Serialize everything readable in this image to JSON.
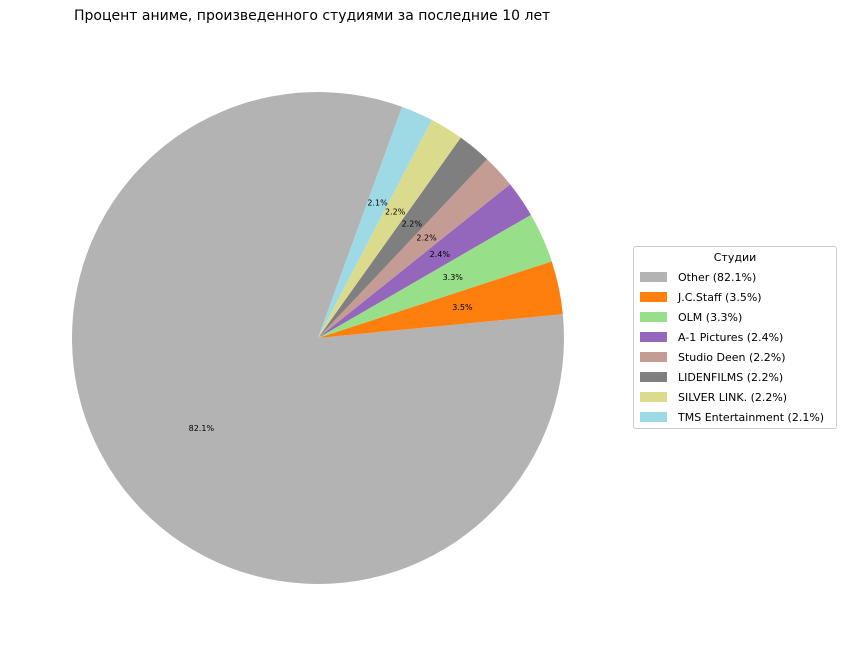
{
  "chart_data": {
    "type": "pie",
    "title": "Процент аниме, произведенного студиями за последние 10 лет",
    "legend_title": "Студии",
    "legend_position": "right",
    "slices": [
      {
        "name": "Other",
        "legend_label": "Other (82.1%)",
        "value": 82.1,
        "label": "82.1%",
        "color": "#b3b3b3"
      },
      {
        "name": "J.C.Staff",
        "legend_label": "J.C.Staff (3.5%)",
        "value": 3.5,
        "label": "3.5%",
        "color": "#ff7f0e"
      },
      {
        "name": "OLM",
        "legend_label": "OLM (3.3%)",
        "value": 3.3,
        "label": "3.3%",
        "color": "#98df8a"
      },
      {
        "name": "A-1 Pictures",
        "legend_label": "A-1 Pictures (2.4%)",
        "value": 2.4,
        "label": "2.4%",
        "color": "#9467bd"
      },
      {
        "name": "Studio Deen",
        "legend_label": "Studio Deen (2.2%)",
        "value": 2.2,
        "label": "2.2%",
        "color": "#c49c94"
      },
      {
        "name": "LIDENFILMS",
        "legend_label": "LIDENFILMS (2.2%)",
        "value": 2.2,
        "label": "2.2%",
        "color": "#7f7f7f"
      },
      {
        "name": "SILVER LINK.",
        "legend_label": "SILVER LINK. (2.2%)",
        "value": 2.2,
        "label": "2.2%",
        "color": "#dbdb8d"
      },
      {
        "name": "TMS Entertainment",
        "legend_label": "TMS Entertainment (2.1%)",
        "value": 2.1,
        "label": "2.1%",
        "color": "#9edae5"
      }
    ]
  }
}
